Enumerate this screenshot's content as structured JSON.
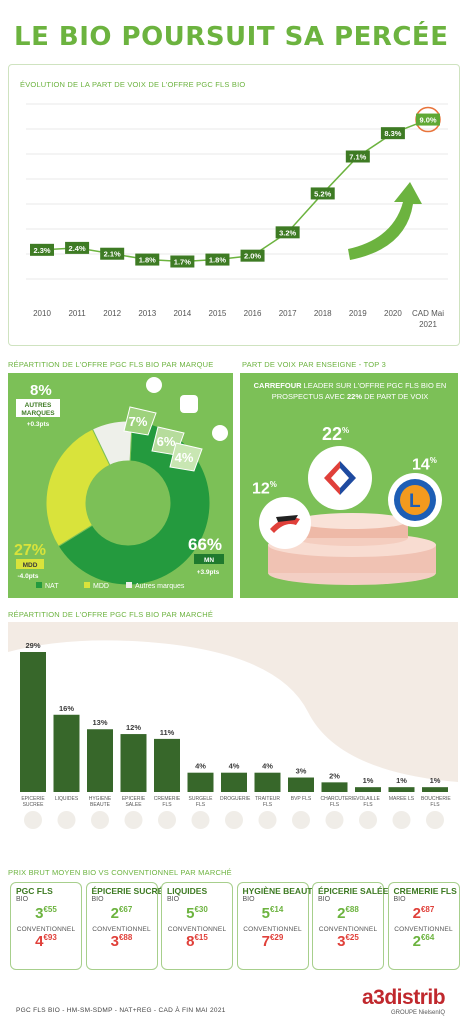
{
  "title": "LE BIO POURSUIT SA PERCÉE",
  "colors": {
    "green": "#6cb33f",
    "dark_green": "#3e7b24",
    "red": "#e0403a",
    "orange": "#e8743b"
  },
  "chart_data": [
    {
      "type": "line",
      "title": "ÉVOLUTION DE LA PART DE VOIX DE L'OFFRE PGC FLS BIO",
      "x": [
        "2010",
        "2011",
        "2012",
        "2013",
        "2014",
        "2015",
        "2016",
        "2017",
        "2018",
        "2019",
        "2020",
        "CAD Mai 2021"
      ],
      "series": [
        {
          "values": [
            2.3,
            2.4,
            2.1,
            1.8,
            1.7,
            1.8,
            2.0,
            3.2,
            5.2,
            7.1,
            8.3,
            9.0
          ]
        }
      ],
      "labels": [
        "2.3%",
        "2.4%",
        "2.1%",
        "1.8%",
        "1.7%",
        "1.8%",
        "2.0%",
        "3.2%",
        "5.2%",
        "7.1%",
        "8.3%",
        "9.0%"
      ],
      "xlabel": "",
      "ylabel": "",
      "grid": true
    },
    {
      "type": "pie",
      "title": "RÉPARTITION DE L'OFFRE PGC FLS BIO PAR MARQUE",
      "categories": [
        "NAT",
        "MDD",
        "Autres marques"
      ],
      "values": [
        66,
        27,
        8
      ],
      "labels": [
        "66%",
        "27%",
        "8%"
      ],
      "legend": "bottom",
      "sub_values": [
        7,
        6,
        4
      ],
      "sub_labels": [
        "7%",
        "6%",
        "4%"
      ]
    },
    {
      "type": "bar",
      "title": "RÉPARTITION DE L'OFFRE PGC FLS BIO PAR MARCHÉ",
      "categories": [
        "EPICERIE SUCREE",
        "LIQUIDES",
        "HYGIENE BEAUTE",
        "EPICERIE SALEE",
        "CREMERIE FLS",
        "SURGELE FLS",
        "DROGUERIE",
        "TRAITEUR FLS",
        "BVP FLS",
        "CHARCUTERIE FLS",
        "VOLAILLE FLS",
        "MAREE LS",
        "BOUCHERIE FLS"
      ],
      "values": [
        29,
        16,
        13,
        12,
        11,
        4,
        4,
        4,
        3,
        2,
        1,
        1,
        1
      ],
      "labels": [
        "29%",
        "16%",
        "13%",
        "12%",
        "11%",
        "4%",
        "4%",
        "4%",
        "3%",
        "2%",
        "1%",
        "1%",
        "1%"
      ]
    }
  ],
  "pie": {
    "nat": {
      "value": "66%",
      "label": "MN",
      "delta": "+3.9pts"
    },
    "mdd": {
      "value": "27%",
      "label": "MDD",
      "delta": "-4.0pts"
    },
    "autres": {
      "value": "8%",
      "label": "AUTRES MARQUES",
      "delta": "+0.3pts"
    },
    "legend": [
      "NAT",
      "MDD",
      "Autres marques"
    ]
  },
  "enseigne": {
    "title": "PART DE VOIX PAR ENSEIGNE - TOP 3",
    "lead_name": "CARREFOUR",
    "lead_text": "LEADER SUR L'OFFRE PGC FLS BIO EN PROSPECTUS AVEC",
    "lead_pct": "22%",
    "lead_tail": "DE PART DE VOIX",
    "p1": "22",
    "p2": "14",
    "p3": "12",
    "pct_sign": "%"
  },
  "prix": {
    "title": "PRIX BRUT MOYEN BIO VS CONVENTIONNEL PAR MARCHÉ",
    "bio_label": "BIO",
    "conv_label": "CONVENTIONNEL",
    "cards": [
      {
        "name": "PGC FLS",
        "bio": "3",
        "bio_c": "€55",
        "conv": "4",
        "conv_c": "€93"
      },
      {
        "name": "ÉPICERIE SUCRÉE",
        "bio": "2",
        "bio_c": "€67",
        "conv": "3",
        "conv_c": "€88"
      },
      {
        "name": "LIQUIDES",
        "bio": "5",
        "bio_c": "€30",
        "conv": "8",
        "conv_c": "€15"
      },
      {
        "name": "HYGIÈNE BEAUTÉ",
        "bio": "5",
        "bio_c": "€14",
        "conv": "7",
        "conv_c": "€29"
      },
      {
        "name": "ÉPICERIE SALÉE",
        "bio": "2",
        "bio_c": "€88",
        "conv": "3",
        "conv_c": "€25"
      },
      {
        "name": "CREMERIE FLS",
        "bio": "2",
        "bio_c": "€87",
        "conv": "2",
        "conv_c": "€64"
      }
    ]
  },
  "footer": "PGC FLS BIO - HM-SM-SDMP - NAT+REG - CAD À FIN MAI 2021",
  "brand": {
    "name": "a3distrib",
    "sub": "GROUPE NielsenIQ"
  }
}
